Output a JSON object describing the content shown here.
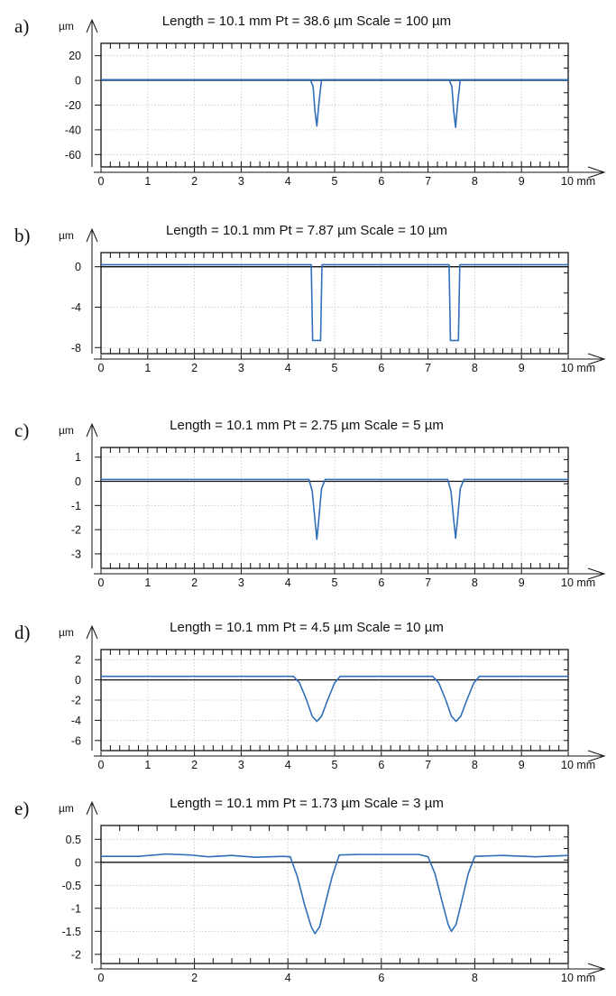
{
  "chart_data": [
    {
      "panel": "a)",
      "type": "line",
      "title": "Length = 10.1 mm  Pt = 38.6 µm  Scale = 100 µm",
      "ylabel": "µm",
      "xlabel": "mm",
      "xlim": [
        0,
        10
      ],
      "ylim": [
        -70,
        30
      ],
      "yticks": [
        20,
        0,
        -20,
        -40,
        -60
      ],
      "ytick_labels": [
        "20",
        "0",
        "-20",
        "-40",
        "-60"
      ],
      "xticks": [
        0,
        1,
        2,
        3,
        4,
        5,
        6,
        7,
        8,
        9,
        10
      ],
      "xtick_labels": [
        "0",
        "1",
        "2",
        "3",
        "4",
        "5",
        "6",
        "7",
        "8",
        "9",
        "10 mm"
      ],
      "baseline": 0,
      "line_color": "#2f6fb8",
      "series": [
        {
          "x": [
            0,
            4.48,
            4.54,
            4.58,
            4.62,
            4.66,
            4.72,
            10
          ],
          "y": [
            0.5,
            0.5,
            -5,
            -25,
            -37,
            -20,
            0.5,
            0.5
          ]
        },
        {
          "x": [
            0,
            7.45,
            7.51,
            7.55,
            7.59,
            7.63,
            7.69,
            10
          ],
          "y": [
            0.5,
            0.5,
            -5,
            -25,
            -38,
            -20,
            0.5,
            0.5
          ]
        }
      ]
    },
    {
      "panel": "b)",
      "type": "line",
      "title": "Length = 10.1 mm  Pt = 7.87 µm  Scale = 10 µm",
      "ylabel": "µm",
      "xlabel": "mm",
      "xlim": [
        0,
        10
      ],
      "ylim": [
        -8.6,
        1.4
      ],
      "yticks": [
        0,
        -4,
        -8
      ],
      "ytick_labels": [
        "0",
        "-4",
        "-8"
      ],
      "xticks": [
        0,
        1,
        2,
        3,
        4,
        5,
        6,
        7,
        8,
        9,
        10
      ],
      "xtick_labels": [
        "0",
        "1",
        "2",
        "3",
        "4",
        "5",
        "6",
        "7",
        "8",
        "9",
        "10 mm"
      ],
      "baseline": 0,
      "line_color": "#2f6fb8",
      "series": [
        {
          "x": [
            0,
            4.5,
            4.53,
            4.7,
            4.73,
            7.45,
            7.48,
            7.65,
            7.68,
            10
          ],
          "y": [
            0.2,
            0.2,
            -7.3,
            -7.3,
            0.2,
            0.2,
            -7.3,
            -7.3,
            0.2,
            0.2
          ]
        }
      ]
    },
    {
      "panel": "c)",
      "type": "line",
      "title": "Length = 10.1 mm  Pt = 2.75 µm  Scale = 5 µm",
      "ylabel": "µm",
      "xlabel": "mm",
      "xlim": [
        0,
        10
      ],
      "ylim": [
        -3.6,
        1.4
      ],
      "yticks": [
        1,
        0,
        -1,
        -2,
        -3
      ],
      "ytick_labels": [
        "1",
        "0",
        "-1",
        "-2",
        "-3"
      ],
      "xticks": [
        0,
        1,
        2,
        3,
        4,
        5,
        6,
        7,
        8,
        9,
        10
      ],
      "xtick_labels": [
        "0",
        "1",
        "2",
        "3",
        "4",
        "5",
        "6",
        "7",
        "8",
        "9",
        "10 mm"
      ],
      "baseline": 0,
      "line_color": "#2f6fb8",
      "series": [
        {
          "x": [
            0,
            4.45,
            4.52,
            4.58,
            4.62,
            4.66,
            4.72,
            4.8,
            7.42,
            7.49,
            7.55,
            7.59,
            7.63,
            7.69,
            7.77,
            10
          ],
          "y": [
            0.08,
            0.08,
            -0.4,
            -1.6,
            -2.4,
            -1.6,
            -0.3,
            0.08,
            0.08,
            -0.4,
            -1.6,
            -2.35,
            -1.6,
            -0.3,
            0.08,
            0.08
          ]
        }
      ]
    },
    {
      "panel": "d)",
      "type": "line",
      "title": "Length = 10.1 mm  Pt = 4.5 µm  Scale = 10 µm",
      "ylabel": "µm",
      "xlabel": "mm",
      "xlim": [
        0,
        10
      ],
      "ylim": [
        -7,
        3
      ],
      "yticks": [
        2,
        0,
        -2,
        -4,
        -6
      ],
      "ytick_labels": [
        "2",
        "0",
        "-2",
        "-4",
        "-6"
      ],
      "xticks": [
        0,
        1,
        2,
        3,
        4,
        5,
        6,
        7,
        8,
        9,
        10
      ],
      "xtick_labels": [
        "0",
        "1",
        "2",
        "3",
        "4",
        "5",
        "6",
        "7",
        "8",
        "9",
        "10 mm"
      ],
      "baseline": 0,
      "line_color": "#2f6fb8",
      "series": [
        {
          "x": [
            0,
            4.12,
            4.25,
            4.4,
            4.52,
            4.62,
            4.72,
            4.85,
            5.0,
            5.12,
            7.1,
            7.23,
            7.38,
            7.5,
            7.6,
            7.7,
            7.83,
            7.98,
            8.1,
            10
          ],
          "y": [
            0.35,
            0.35,
            -0.3,
            -2.0,
            -3.6,
            -4.1,
            -3.6,
            -2.0,
            -0.3,
            0.35,
            0.35,
            -0.3,
            -2.0,
            -3.6,
            -4.1,
            -3.6,
            -2.0,
            -0.3,
            0.35,
            0.35
          ]
        }
      ]
    },
    {
      "panel": "e)",
      "type": "line",
      "title": "Length = 10.1 mm  Pt = 1.73 µm  Scale = 3 µm",
      "ylabel": "µm",
      "xlabel": "mm",
      "xlim": [
        0,
        10
      ],
      "ylim": [
        -2.2,
        0.8
      ],
      "yticks": [
        0.5,
        0,
        -0.5,
        -1,
        -1.5,
        -2
      ],
      "ytick_labels": [
        "0.5",
        "0",
        "-0.5",
        "-1",
        "-1.5",
        "-2"
      ],
      "xticks": [
        0,
        2,
        4,
        6,
        8,
        10
      ],
      "xtick_labels": [
        "0",
        "2",
        "4",
        "6",
        "8",
        "10 mm"
      ],
      "baseline": 0,
      "line_color": "#2f6fb8",
      "series": [
        {
          "x": [
            0,
            0.8,
            1.4,
            1.9,
            2.3,
            2.8,
            3.3,
            3.9,
            4.05,
            4.2,
            4.35,
            4.5,
            4.58,
            4.68,
            4.8,
            4.95,
            5.1,
            5.5,
            6.2,
            6.8,
            7.0,
            7.15,
            7.3,
            7.43,
            7.5,
            7.6,
            7.72,
            7.86,
            8.0,
            8.6,
            9.3,
            10
          ],
          "y": [
            0.13,
            0.13,
            0.18,
            0.16,
            0.12,
            0.15,
            0.11,
            0.13,
            0.12,
            -0.3,
            -0.9,
            -1.4,
            -1.55,
            -1.4,
            -0.9,
            -0.3,
            0.16,
            0.17,
            0.17,
            0.17,
            0.12,
            -0.25,
            -0.85,
            -1.35,
            -1.5,
            -1.35,
            -0.85,
            -0.25,
            0.13,
            0.15,
            0.12,
            0.15
          ]
        }
      ]
    }
  ]
}
